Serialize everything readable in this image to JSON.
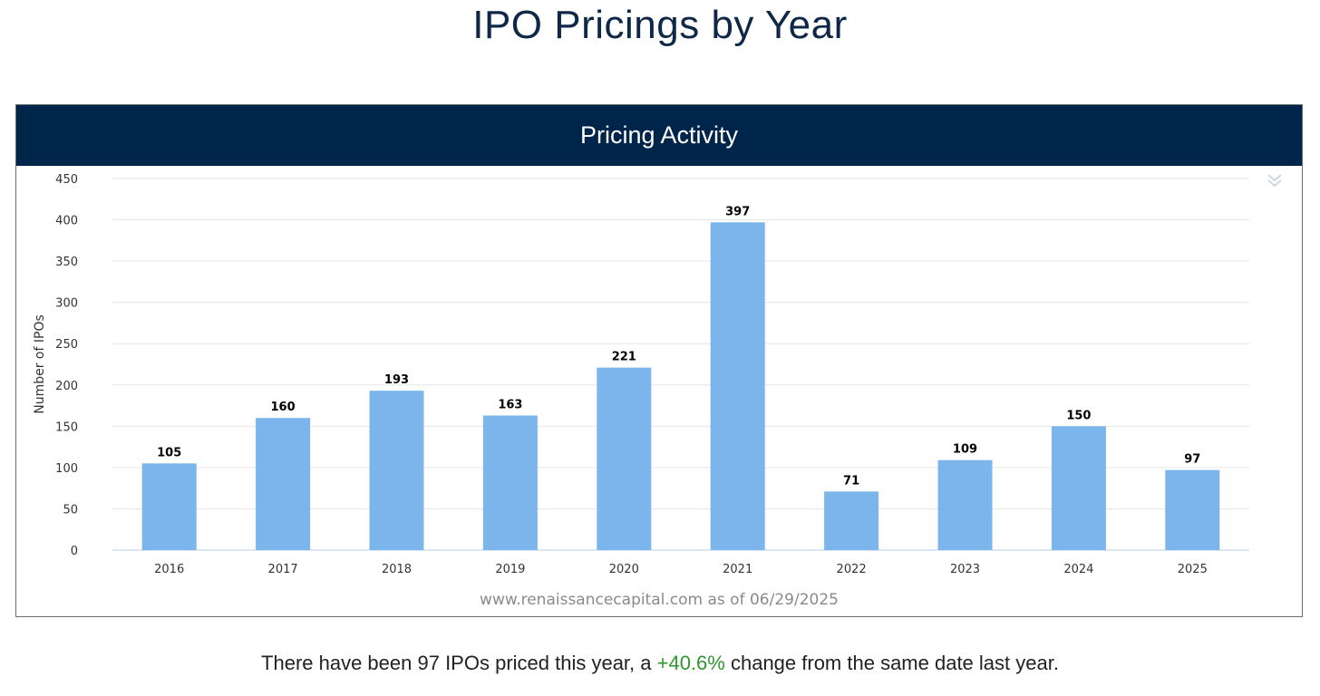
{
  "page": {
    "title": "IPO Pricings by Year"
  },
  "chart_header": {
    "title": "Pricing Activity"
  },
  "menu": {
    "icon": "double-chevron-down-icon"
  },
  "source": {
    "text": "www.renaissancecapital.com as of 06/29/2025"
  },
  "summary": {
    "prefix": "There have been 97 IPOs priced this year, a ",
    "change": "+40.6%",
    "suffix": " change from the same date last year."
  },
  "colors": {
    "header_bg": "#00254a",
    "bar": "#7cb5ec",
    "positive": "#2e9a2e",
    "title": "#0f2847"
  },
  "chart_data": {
    "type": "bar",
    "title": "Pricing Activity",
    "xlabel": "",
    "ylabel": "Number of IPOs",
    "categories": [
      "2016",
      "2017",
      "2018",
      "2019",
      "2020",
      "2021",
      "2022",
      "2023",
      "2024",
      "2025"
    ],
    "values": [
      105,
      160,
      193,
      163,
      221,
      397,
      71,
      109,
      150,
      97
    ],
    "ylim": [
      0,
      450
    ],
    "yticks": [
      0,
      50,
      100,
      150,
      200,
      250,
      300,
      350,
      400,
      450
    ],
    "grid": true,
    "data_labels": true
  }
}
